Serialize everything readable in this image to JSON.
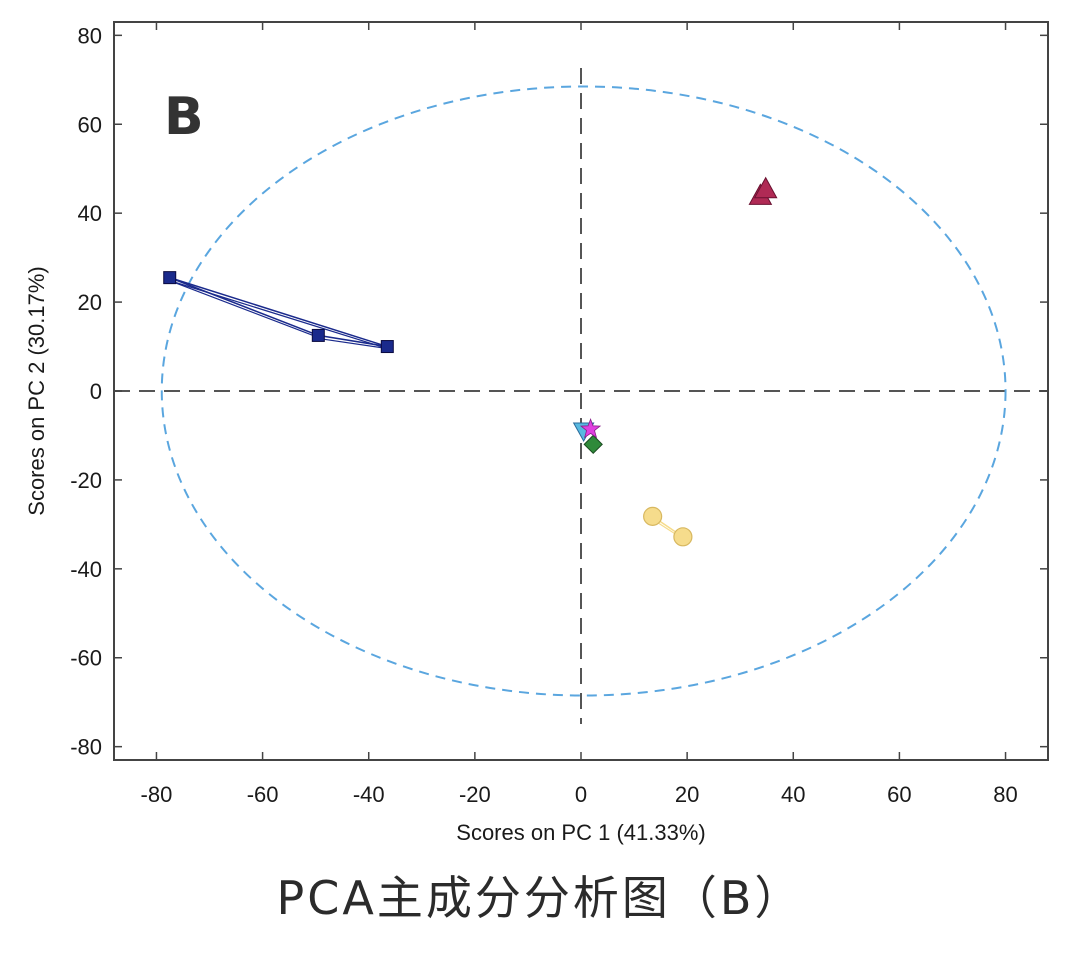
{
  "caption": "PCA主成分分析图（B）",
  "chart_data": {
    "type": "scatter",
    "title": "",
    "panel_label": "B",
    "xlabel": "Scores on PC 1 (41.33%)",
    "ylabel": "Scores on PC 2 (30.17%)",
    "xlim": [
      -88,
      88
    ],
    "ylim": [
      -83,
      83
    ],
    "xticks": [
      -80,
      -60,
      -40,
      -20,
      0,
      20,
      40,
      60,
      80
    ],
    "yticks": [
      80,
      60,
      40,
      20,
      0,
      -20,
      -40,
      -60,
      -80
    ],
    "reference_lines": {
      "x": 0,
      "y": 0,
      "color": "#555555"
    },
    "confidence_ellipse": {
      "cx": 0.5,
      "cy": 0,
      "rx": 79.5,
      "ry": 68.5,
      "color": "#5aa6df"
    },
    "series": [
      {
        "name": "group-blue-squares",
        "marker": "square",
        "color": "#1a2a8c",
        "connected": true,
        "points": [
          [
            -77.5,
            25.5
          ],
          [
            -49.5,
            12.5
          ],
          [
            -36.5,
            10.0
          ]
        ]
      },
      {
        "name": "group-red-triangles",
        "marker": "triangle",
        "color": "#b02a55",
        "connected": false,
        "points": [
          [
            33.8,
            44.0
          ],
          [
            34.8,
            45.5
          ]
        ]
      },
      {
        "name": "group-yellow-circles",
        "marker": "circle",
        "color": "#f6dc8c",
        "connected": true,
        "points": [
          [
            13.5,
            -28.2
          ],
          [
            19.2,
            -32.8
          ]
        ]
      },
      {
        "name": "group-cyan-down-triangles",
        "marker": "triangle-down",
        "color": "#58b9e0",
        "connected": false,
        "points": [
          [
            0.5,
            -9.0
          ]
        ]
      },
      {
        "name": "group-green-diamonds",
        "marker": "diamond",
        "color": "#2f8a3a",
        "connected": false,
        "points": [
          [
            2.3,
            -12.0
          ]
        ]
      },
      {
        "name": "group-magenta-stars",
        "marker": "star",
        "color": "#e040e0",
        "connected": false,
        "points": [
          [
            1.8,
            -8.6
          ]
        ]
      }
    ]
  }
}
